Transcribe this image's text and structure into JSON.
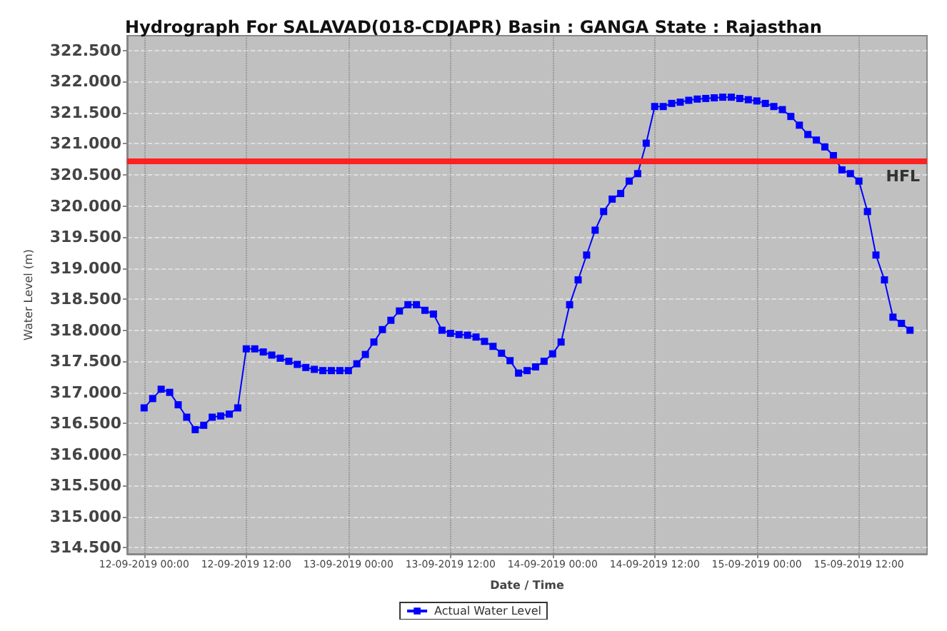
{
  "chart_data": {
    "type": "line",
    "title": "Hydrograph For SALAVAD(018-CDJAPR) Basin : GANGA State : Rajasthan",
    "xlabel": "Date / Time",
    "ylabel": "Water Level (m)",
    "x": [
      "2019-09-12T00:00",
      "2019-09-12T01:00",
      "2019-09-12T02:00",
      "2019-09-12T03:00",
      "2019-09-12T04:00",
      "2019-09-12T05:00",
      "2019-09-12T06:00",
      "2019-09-12T07:00",
      "2019-09-12T08:00",
      "2019-09-12T09:00",
      "2019-09-12T10:00",
      "2019-09-12T11:00",
      "2019-09-12T12:00",
      "2019-09-12T13:00",
      "2019-09-12T14:00",
      "2019-09-12T15:00",
      "2019-09-12T16:00",
      "2019-09-12T17:00",
      "2019-09-12T18:00",
      "2019-09-12T19:00",
      "2019-09-12T20:00",
      "2019-09-12T21:00",
      "2019-09-12T22:00",
      "2019-09-12T23:00",
      "2019-09-13T00:00",
      "2019-09-13T01:00",
      "2019-09-13T02:00",
      "2019-09-13T03:00",
      "2019-09-13T04:00",
      "2019-09-13T05:00",
      "2019-09-13T06:00",
      "2019-09-13T07:00",
      "2019-09-13T08:00",
      "2019-09-13T09:00",
      "2019-09-13T10:00",
      "2019-09-13T11:00",
      "2019-09-13T12:00",
      "2019-09-13T13:00",
      "2019-09-13T14:00",
      "2019-09-13T15:00",
      "2019-09-13T16:00",
      "2019-09-13T17:00",
      "2019-09-13T18:00",
      "2019-09-13T19:00",
      "2019-09-13T20:00",
      "2019-09-13T21:00",
      "2019-09-13T22:00",
      "2019-09-13T23:00",
      "2019-09-14T00:00",
      "2019-09-14T01:00",
      "2019-09-14T02:00",
      "2019-09-14T03:00",
      "2019-09-14T04:00",
      "2019-09-14T05:00",
      "2019-09-14T06:00",
      "2019-09-14T07:00",
      "2019-09-14T08:00",
      "2019-09-14T09:00",
      "2019-09-14T10:00",
      "2019-09-14T11:00",
      "2019-09-14T12:00",
      "2019-09-14T13:00",
      "2019-09-14T14:00",
      "2019-09-14T15:00",
      "2019-09-14T16:00",
      "2019-09-14T17:00",
      "2019-09-14T18:00",
      "2019-09-14T19:00",
      "2019-09-14T20:00",
      "2019-09-14T21:00",
      "2019-09-14T22:00",
      "2019-09-14T23:00",
      "2019-09-15T00:00",
      "2019-09-15T01:00",
      "2019-09-15T02:00",
      "2019-09-15T03:00",
      "2019-09-15T04:00",
      "2019-09-15T05:00",
      "2019-09-15T06:00",
      "2019-09-15T07:00",
      "2019-09-15T08:00",
      "2019-09-15T09:00",
      "2019-09-15T10:00",
      "2019-09-15T11:00",
      "2019-09-15T12:00",
      "2019-09-15T13:00",
      "2019-09-15T14:00",
      "2019-09-15T15:00",
      "2019-09-15T16:00",
      "2019-09-15T17:00",
      "2019-09-15T18:00"
    ],
    "series": [
      {
        "name": "Actual Water Level",
        "color": "#0000ff",
        "values": [
          316.75,
          316.9,
          317.05,
          317.0,
          316.8,
          316.6,
          316.4,
          316.47,
          316.6,
          316.62,
          316.65,
          316.75,
          317.7,
          317.7,
          317.65,
          317.6,
          317.55,
          317.5,
          317.45,
          317.4,
          317.37,
          317.35,
          317.35,
          317.35,
          317.35,
          317.46,
          317.61,
          317.81,
          318.01,
          318.16,
          318.31,
          318.41,
          318.41,
          318.32,
          318.26,
          318.0,
          317.95,
          317.93,
          317.92,
          317.89,
          317.82,
          317.74,
          317.63,
          317.51,
          317.31,
          317.35,
          317.41,
          317.5,
          317.62,
          317.81,
          318.41,
          318.81,
          319.21,
          319.61,
          319.91,
          320.11,
          320.2,
          320.4,
          320.52,
          321.01,
          321.6,
          321.6,
          321.65,
          321.67,
          321.7,
          321.72,
          321.73,
          321.74,
          321.75,
          321.75,
          321.73,
          321.71,
          321.69,
          321.65,
          321.6,
          321.55,
          321.44,
          321.3,
          321.15,
          321.06,
          320.95,
          320.81,
          320.58,
          320.52,
          320.4,
          319.91,
          319.21,
          318.81,
          318.21,
          318.11,
          318.0
        ]
      }
    ],
    "xlim": [
      "2019-09-11T22:00",
      "2019-09-15T20:00"
    ],
    "xticks": [
      {
        "value": "2019-09-12T00:00",
        "label": "12-09-2019 00:00"
      },
      {
        "value": "2019-09-12T12:00",
        "label": "12-09-2019 12:00"
      },
      {
        "value": "2019-09-13T00:00",
        "label": "13-09-2019 00:00"
      },
      {
        "value": "2019-09-13T12:00",
        "label": "13-09-2019 12:00"
      },
      {
        "value": "2019-09-14T00:00",
        "label": "14-09-2019 00:00"
      },
      {
        "value": "2019-09-14T12:00",
        "label": "14-09-2019 12:00"
      },
      {
        "value": "2019-09-15T00:00",
        "label": "15-09-2019 00:00"
      },
      {
        "value": "2019-09-15T12:00",
        "label": "15-09-2019 12:00"
      }
    ],
    "ylim": [
      314.4,
      322.74
    ],
    "yticks": [
      {
        "value": 314.5,
        "label": "314.500"
      },
      {
        "value": 315,
        "label": "315.000"
      },
      {
        "value": 315.5,
        "label": "315.500"
      },
      {
        "value": 316,
        "label": "316.000"
      },
      {
        "value": 316.5,
        "label": "316.500"
      },
      {
        "value": 317,
        "label": "317.000"
      },
      {
        "value": 317.5,
        "label": "317.500"
      },
      {
        "value": 318,
        "label": "318.000"
      },
      {
        "value": 318.5,
        "label": "318.500"
      },
      {
        "value": 319,
        "label": "319.000"
      },
      {
        "value": 319.5,
        "label": "319.500"
      },
      {
        "value": 320,
        "label": "320.000"
      },
      {
        "value": 320.5,
        "label": "320.500"
      },
      {
        "value": 321,
        "label": "321.000"
      },
      {
        "value": 321.5,
        "label": "321.500"
      },
      {
        "value": 322,
        "label": "322.000"
      },
      {
        "value": 322.5,
        "label": "322.500"
      }
    ],
    "ref_lines": [
      {
        "axis": "y",
        "value": 320.72,
        "label": "HFL",
        "color": "#ff2020"
      }
    ],
    "grid": true,
    "legend": "bottom",
    "marker": "square",
    "line_style": "solid"
  }
}
